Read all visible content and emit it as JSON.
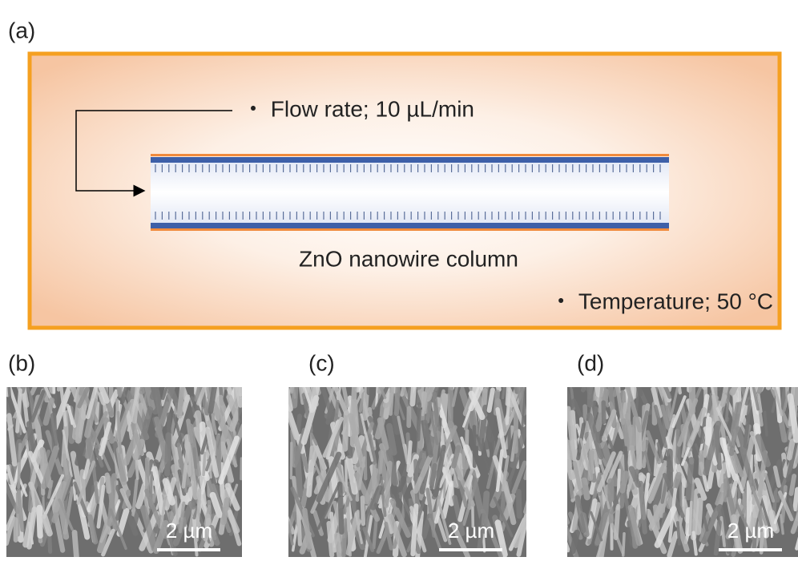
{
  "panel_a": {
    "label": "(a)",
    "flow_rate": "・ Flow rate; 10 µL/min",
    "column": "ZnO nanowire column",
    "temperature": "・ Temperature; 50 °C"
  },
  "sem_images": [
    {
      "label": "(b)",
      "scale_bar": "2 µm"
    },
    {
      "label": "(c)",
      "scale_bar": "2 µm"
    },
    {
      "label": "(d)",
      "scale_bar": "2 µm"
    }
  ]
}
